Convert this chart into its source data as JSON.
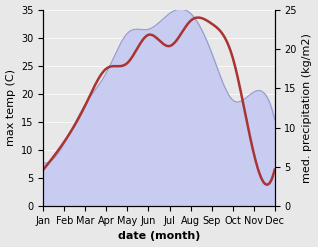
{
  "months": [
    "Jan",
    "Feb",
    "Mar",
    "Apr",
    "May",
    "Jun",
    "Jul",
    "Aug",
    "Sep",
    "Oct",
    "Nov",
    "Dec"
  ],
  "temperature": [
    6.5,
    11.5,
    18.0,
    24.5,
    25.5,
    30.5,
    28.5,
    33.0,
    32.5,
    26.5,
    9.5,
    6.5
  ],
  "precipitation": [
    5.5,
    8.0,
    13.0,
    17.0,
    22.0,
    22.5,
    24.5,
    24.5,
    19.5,
    13.5,
    14.5,
    11.0
  ],
  "temp_color": "#aa3333",
  "precip_fill_color": "#c8ccf0",
  "precip_line_color": "#9999cc",
  "temp_ylim": [
    0,
    35
  ],
  "precip_ylim": [
    0,
    25
  ],
  "left_yticks": [
    0,
    5,
    10,
    15,
    20,
    25,
    30,
    35
  ],
  "right_yticks": [
    0,
    5,
    10,
    15,
    20,
    25
  ],
  "xlabel": "date (month)",
  "ylabel_left": "max temp (C)",
  "ylabel_right": "med. precipitation (kg/m2)",
  "axis_fontsize": 8,
  "tick_fontsize": 7,
  "label_fontweight": "bold",
  "bg_color": "#e8e8e8",
  "fig_bg_color": "#e8e8e8"
}
